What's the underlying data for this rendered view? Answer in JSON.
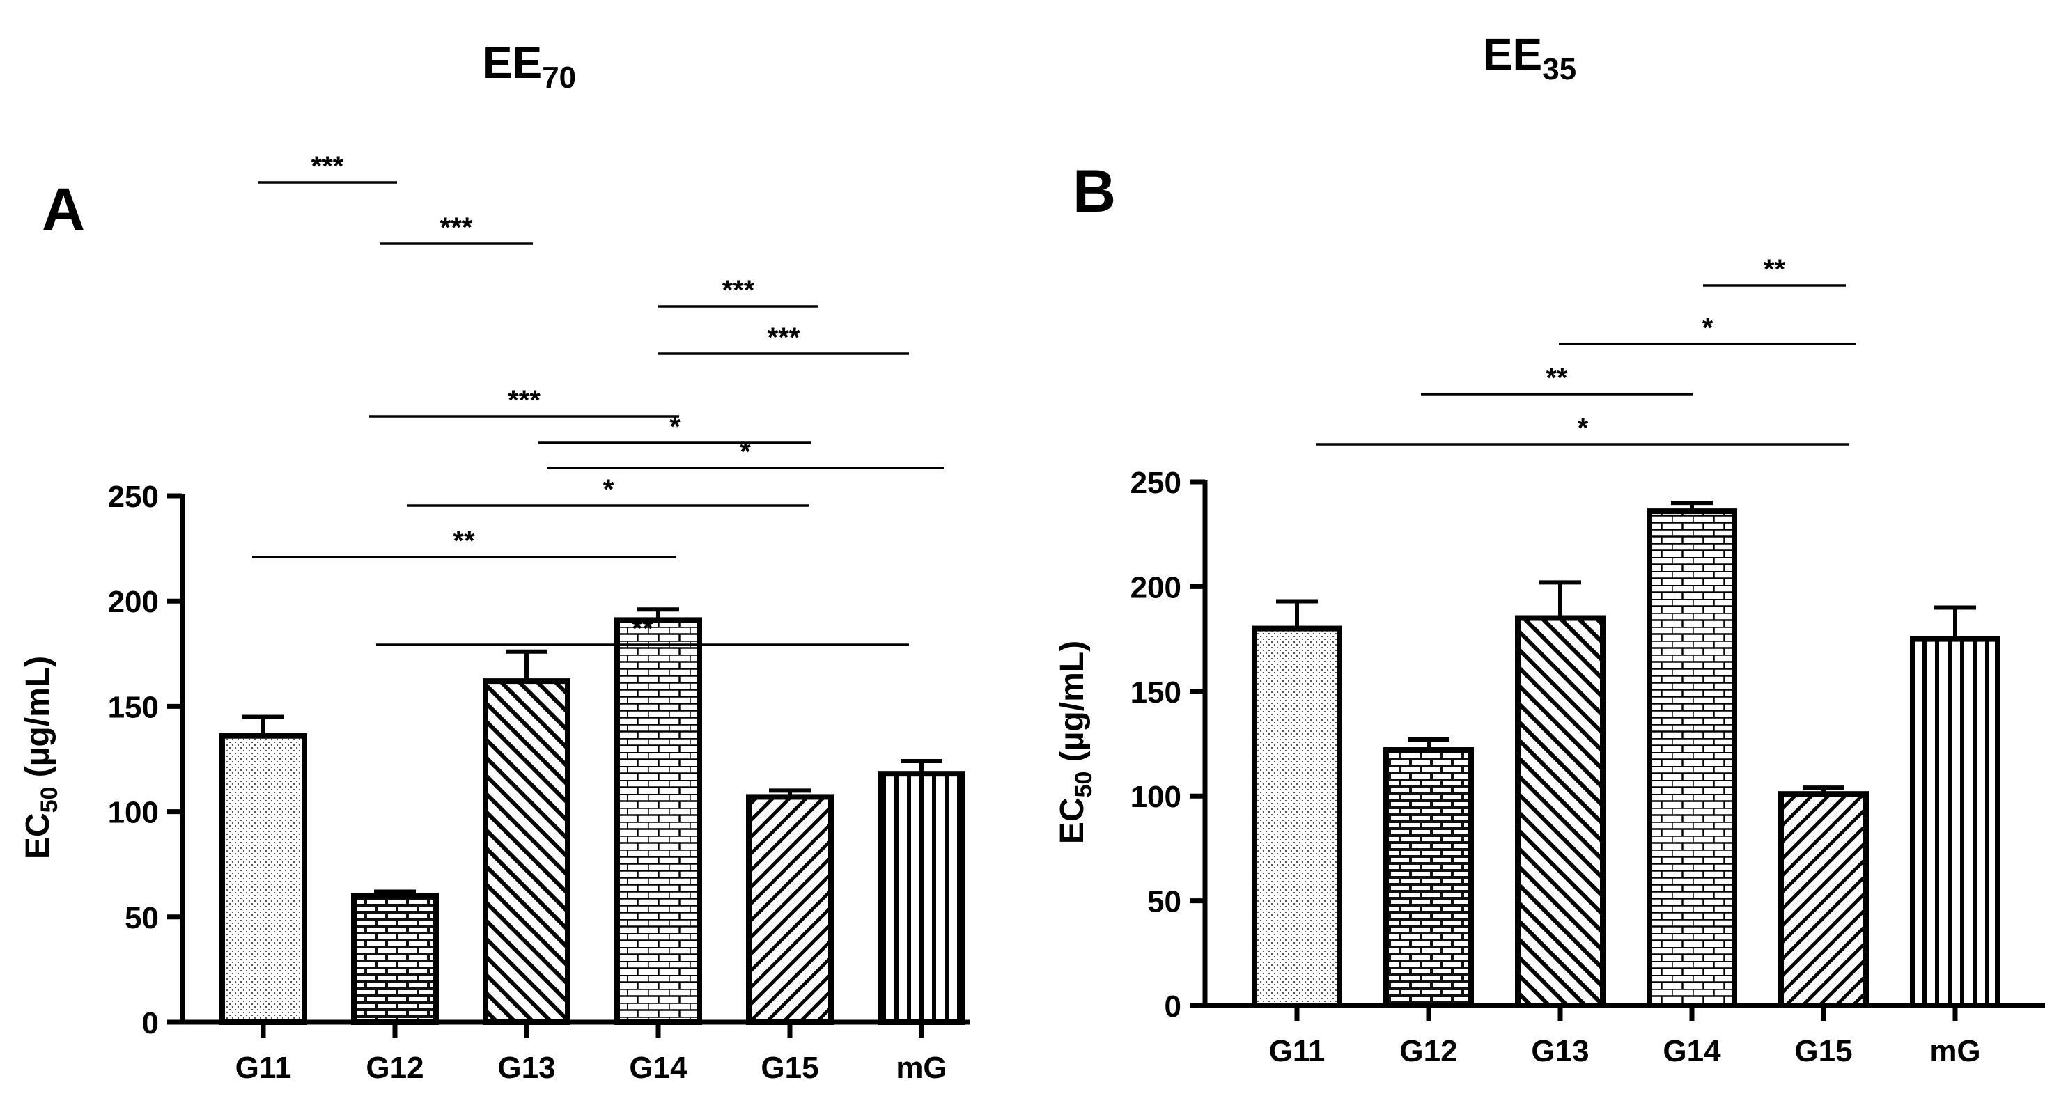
{
  "colors": {
    "ink": "#000000",
    "background": "#ffffff"
  },
  "chart_data": [
    {
      "type": "bar",
      "panel": "A",
      "title": "EE",
      "title_sub": "70",
      "ylabel": "EC",
      "ylabel_sub": "50",
      "ylabel_unit": " (µg/mL)",
      "xlabel": "",
      "ylim": [
        0,
        250
      ],
      "yticks": [
        0,
        50,
        100,
        150,
        200,
        250
      ],
      "grid": false,
      "categories": [
        "G11",
        "G12",
        "G13",
        "G14",
        "G15",
        "mG"
      ],
      "values": [
        136,
        60,
        162,
        191,
        107,
        118
      ],
      "errors": [
        9,
        2,
        14,
        5,
        3,
        6
      ],
      "patterns": [
        "dots",
        "brick-dark",
        "diag-back",
        "brick-light",
        "diag-fwd",
        "vertical"
      ],
      "significance": [
        {
          "label": "**",
          "from": "G12",
          "to": "mG",
          "level": 10
        },
        {
          "label": "**",
          "from": "G11",
          "to": "G14",
          "level": 9
        },
        {
          "label": "*",
          "from": "G12",
          "to": "G15",
          "level": 8
        },
        {
          "label": "*",
          "from": "G13",
          "to": "mG",
          "level": 7
        },
        {
          "label": "*",
          "from": "G13",
          "to": "G15",
          "level": 6
        },
        {
          "label": "***",
          "from": "G12",
          "to": "G14",
          "level": 5
        },
        {
          "label": "***",
          "from": "G14",
          "to": "mG",
          "level": 4
        },
        {
          "label": "***",
          "from": "G14",
          "to": "G15",
          "level": 3
        },
        {
          "label": "***",
          "from": "G12",
          "to": "G13",
          "level": 2
        },
        {
          "label": "***",
          "from": "G11",
          "to": "G12",
          "level": 1
        }
      ]
    },
    {
      "type": "bar",
      "panel": "B",
      "title": "EE",
      "title_sub": "35",
      "ylabel": "EC",
      "ylabel_sub": "50",
      "ylabel_unit": " (µg/mL)",
      "xlabel": "",
      "ylim": [
        0,
        250
      ],
      "yticks": [
        0,
        50,
        100,
        150,
        200,
        250
      ],
      "grid": false,
      "categories": [
        "G11",
        "G12",
        "G13",
        "G14",
        "G15",
        "mG"
      ],
      "values": [
        180,
        122,
        185,
        236,
        101,
        175
      ],
      "errors": [
        13,
        5,
        17,
        4,
        3,
        15
      ],
      "patterns": [
        "dots",
        "brick-dark",
        "diag-back",
        "brick-light",
        "diag-fwd",
        "vertical"
      ],
      "significance": [
        {
          "label": "*",
          "from": "G11",
          "to": "G15",
          "level": 4
        },
        {
          "label": "**",
          "from": "G12",
          "to": "G14",
          "level": 3
        },
        {
          "label": "*",
          "from": "G13",
          "to": "G15",
          "level": 2
        },
        {
          "label": "**",
          "from": "G14",
          "to": "G15",
          "level": 1
        }
      ]
    }
  ]
}
